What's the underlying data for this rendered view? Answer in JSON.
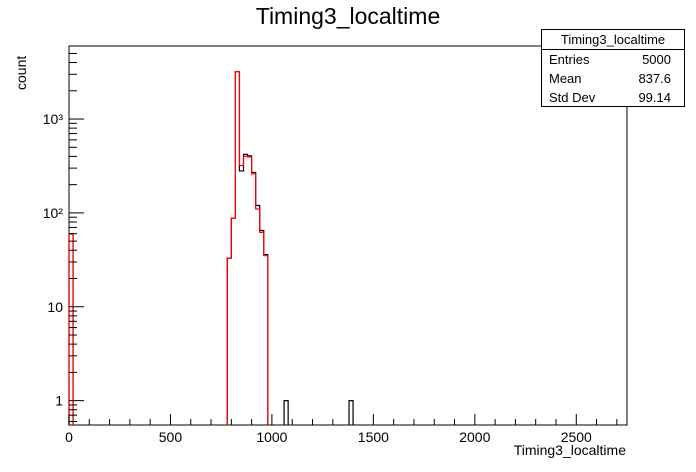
{
  "chart_data": {
    "type": "bar",
    "title": "Timing3_localtime",
    "xlabel": "Timing3_localtime",
    "ylabel": "count",
    "xlim": [
      0,
      2750
    ],
    "ylog": true,
    "ylim": [
      0.55,
      6000
    ],
    "x_ticks": [
      0,
      500,
      1000,
      1500,
      2000,
      2500
    ],
    "y_ticks": [
      {
        "value": 1,
        "label": "1"
      },
      {
        "value": 10,
        "label": "10"
      },
      {
        "value": 100,
        "label": "10²"
      },
      {
        "value": 1000,
        "label": "10³"
      }
    ],
    "series": [
      {
        "color": "#000000",
        "bins": [
          {
            "x0": 0,
            "x1": 20,
            "y": 60
          },
          {
            "x0": 780,
            "x1": 800,
            "y": 33
          },
          {
            "x0": 800,
            "x1": 820,
            "y": 88
          },
          {
            "x0": 820,
            "x1": 840,
            "y": 3200
          },
          {
            "x0": 840,
            "x1": 860,
            "y": 280
          },
          {
            "x0": 860,
            "x1": 880,
            "y": 420
          },
          {
            "x0": 880,
            "x1": 900,
            "y": 405
          },
          {
            "x0": 900,
            "x1": 920,
            "y": 270
          },
          {
            "x0": 920,
            "x1": 940,
            "y": 120
          },
          {
            "x0": 940,
            "x1": 960,
            "y": 65
          },
          {
            "x0": 960,
            "x1": 980,
            "y": 36
          },
          {
            "x0": 1060,
            "x1": 1080,
            "y": 1
          },
          {
            "x0": 1380,
            "x1": 1400,
            "y": 1
          }
        ]
      },
      {
        "color": "#ff0000",
        "bins": [
          {
            "x0": 0,
            "x1": 20,
            "y": 60
          },
          {
            "x0": 780,
            "x1": 800,
            "y": 33
          },
          {
            "x0": 800,
            "x1": 820,
            "y": 88
          },
          {
            "x0": 820,
            "x1": 840,
            "y": 3200
          },
          {
            "x0": 840,
            "x1": 860,
            "y": 320
          },
          {
            "x0": 860,
            "x1": 880,
            "y": 400
          },
          {
            "x0": 880,
            "x1": 900,
            "y": 395
          },
          {
            "x0": 900,
            "x1": 920,
            "y": 260
          },
          {
            "x0": 920,
            "x1": 940,
            "y": 110
          },
          {
            "x0": 940,
            "x1": 960,
            "y": 62
          },
          {
            "x0": 960,
            "x1": 980,
            "y": 35
          }
        ]
      }
    ]
  },
  "stats": {
    "title": "Timing3_localtime",
    "entries_label": "Entries",
    "entries_value": "5000",
    "mean_label": "Mean",
    "mean_value": "837.6",
    "stddev_label": "Std Dev",
    "stddev_value": "99.14"
  }
}
